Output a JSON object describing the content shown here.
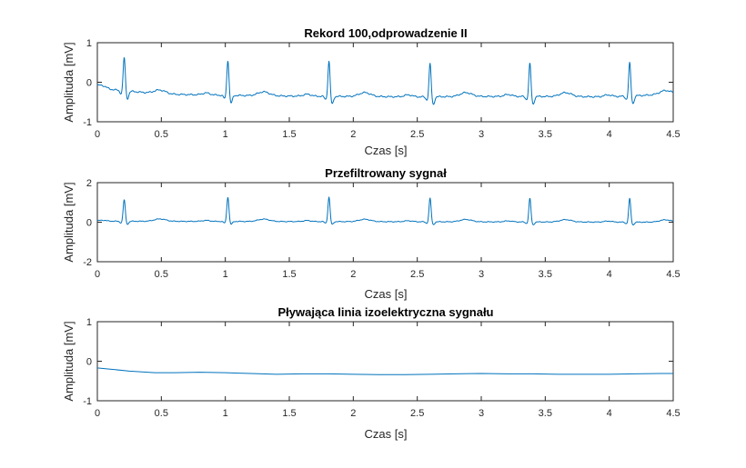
{
  "colors": {
    "trace": "#0072BD",
    "axis": "#262626"
  },
  "chart_data": [
    {
      "type": "line",
      "title": "Rekord 100,odprowadzenie II",
      "xlabel": "Czas [s]",
      "ylabel": "Amplituda [mV]",
      "xlim": [
        0,
        4.5
      ],
      "ylim": [
        -1,
        1
      ],
      "xticks": [
        "0",
        "0.5",
        "1",
        "1.5",
        "2",
        "2.5",
        "3",
        "3.5",
        "4",
        "4.5"
      ],
      "yticks": [
        "-1",
        "0",
        "1"
      ],
      "grid": false,
      "signal": {
        "beats": [
          0.21,
          1.02,
          1.81,
          2.6,
          3.38,
          4.16
        ],
        "r_peak_mV": [
          0.85,
          0.9,
          0.9,
          0.85,
          0.85,
          0.85
        ],
        "baseline_mV": [
          [
            0,
            -0.1
          ],
          [
            0.1,
            -0.18
          ],
          [
            0.5,
            -0.3
          ],
          [
            1.0,
            -0.33
          ],
          [
            1.5,
            -0.35
          ],
          [
            2.0,
            -0.36
          ],
          [
            2.5,
            -0.37
          ],
          [
            3.0,
            -0.36
          ],
          [
            3.5,
            -0.36
          ],
          [
            4.0,
            -0.37
          ],
          [
            4.5,
            -0.3
          ]
        ],
        "s_wave_mV": -0.2,
        "t_wave_mV": 0.1
      }
    },
    {
      "type": "line",
      "title": "Przefiltrowany sygnał",
      "xlabel": "Czas [s]",
      "ylabel": "Amplituda [mV]",
      "xlim": [
        0,
        4.5
      ],
      "ylim": [
        -2,
        2
      ],
      "xticks": [
        "0",
        "0.5",
        "1",
        "1.5",
        "2",
        "2.5",
        "3",
        "3.5",
        "4",
        "4.5"
      ],
      "yticks": [
        "-2",
        "0",
        "2"
      ],
      "grid": false,
      "signal": {
        "beats": [
          0.21,
          1.02,
          1.81,
          2.6,
          3.38,
          4.16
        ],
        "r_peak_mV": [
          1.1,
          1.25,
          1.25,
          1.2,
          1.2,
          1.2
        ],
        "baseline_mV": [
          [
            0,
            0.05
          ],
          [
            4.5,
            0.0
          ]
        ],
        "s_wave_mV": -0.15,
        "t_wave_mV": 0.12
      }
    },
    {
      "type": "line",
      "title": "Pływająca linia izoelektryczna sygnału",
      "xlabel": "Czas [s]",
      "ylabel": "Amplituda [mV]",
      "xlim": [
        0,
        4.5
      ],
      "ylim": [
        -1,
        1
      ],
      "xticks": [
        "0",
        "0.5",
        "1",
        "1.5",
        "2",
        "2.5",
        "3",
        "3.5",
        "4",
        "4.5"
      ],
      "yticks": [
        "-1",
        "0",
        "1"
      ],
      "grid": false,
      "x": [
        0,
        0.1,
        0.25,
        0.45,
        0.6,
        0.8,
        1.0,
        1.2,
        1.4,
        1.6,
        1.8,
        2.0,
        2.2,
        2.4,
        2.6,
        2.8,
        3.0,
        3.2,
        3.4,
        3.6,
        3.8,
        4.0,
        4.2,
        4.4,
        4.5
      ],
      "y": [
        -0.17,
        -0.2,
        -0.25,
        -0.29,
        -0.29,
        -0.28,
        -0.29,
        -0.31,
        -0.33,
        -0.32,
        -0.32,
        -0.33,
        -0.34,
        -0.34,
        -0.33,
        -0.32,
        -0.31,
        -0.32,
        -0.32,
        -0.33,
        -0.33,
        -0.33,
        -0.32,
        -0.31,
        -0.31
      ]
    }
  ]
}
